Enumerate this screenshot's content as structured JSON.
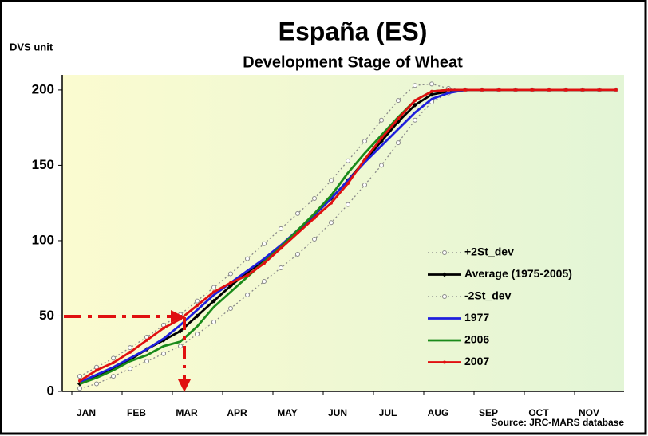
{
  "chart_data": {
    "type": "line",
    "title": "España (ES)",
    "subtitle": "Development Stage of Wheat",
    "y_label": "DVS unit",
    "source": "Source: JRC-MARS database",
    "categories": [
      "JAN",
      null,
      null,
      "FEB",
      null,
      null,
      "MAR",
      null,
      null,
      "APR",
      null,
      null,
      "MAY",
      null,
      null,
      "JUN",
      null,
      null,
      "JUL",
      null,
      null,
      "AUG",
      null,
      null,
      "SEP",
      null,
      null,
      "OCT",
      null,
      null,
      "NOV",
      null,
      null
    ],
    "ylim": [
      0,
      210
    ],
    "yticks": [
      0,
      50,
      100,
      150,
      200
    ],
    "grid": false,
    "series": [
      {
        "name": "+2St_dev",
        "color": "#888888",
        "dash": "dotted",
        "marker": "circle-open",
        "values": [
          10,
          16,
          22,
          29,
          36,
          44,
          51,
          60,
          69,
          78,
          88,
          98,
          108,
          118,
          128,
          140,
          153,
          166,
          180,
          193,
          203,
          204,
          201,
          200,
          200,
          200,
          200,
          200,
          200,
          200,
          200,
          200,
          200
        ]
      },
      {
        "name": "Average (1975-2005)",
        "color": "#000000",
        "dash": "solid",
        "marker": "diamond",
        "values": [
          5,
          10,
          15,
          21,
          28,
          34,
          40,
          50,
          60,
          70,
          79,
          87,
          96,
          106,
          117,
          128,
          140,
          153,
          166,
          179,
          190,
          197,
          199,
          200,
          200,
          200,
          200,
          200,
          200,
          200,
          200,
          200,
          200
        ]
      },
      {
        "name": "-2St_dev",
        "color": "#888888",
        "dash": "dotted",
        "marker": "circle-open",
        "values": [
          2,
          5,
          10,
          15,
          20,
          25,
          30,
          38,
          46,
          55,
          64,
          73,
          82,
          91,
          101,
          112,
          124,
          137,
          150,
          165,
          180,
          192,
          198,
          200,
          200,
          200,
          200,
          200,
          200,
          200,
          200,
          200,
          200
        ]
      },
      {
        "name": "1977",
        "color": "#1f1fdd",
        "dash": "solid",
        "marker": "none",
        "values": [
          6,
          11,
          16,
          22,
          28,
          35,
          44,
          54,
          64,
          72,
          80,
          88,
          97,
          107,
          117,
          128,
          140,
          152,
          163,
          174,
          185,
          194,
          198,
          200,
          200,
          200,
          200,
          200,
          200,
          200,
          200,
          200,
          200
        ]
      },
      {
        "name": "2006",
        "color": "#1a8a1a",
        "dash": "solid",
        "marker": "none",
        "values": [
          5,
          9,
          14,
          20,
          24,
          30,
          33,
          43,
          56,
          66,
          76,
          86,
          96,
          107,
          118,
          130,
          145,
          158,
          170,
          182,
          193,
          199,
          200,
          200,
          200,
          200,
          200,
          200,
          200,
          200,
          200,
          200,
          200
        ]
      },
      {
        "name": "2007",
        "color": "#e01010",
        "dash": "solid",
        "marker": "dot",
        "values": [
          7,
          14,
          19,
          26,
          34,
          42,
          48,
          57,
          66,
          72,
          77,
          85,
          95,
          105,
          115,
          125,
          138,
          154,
          168,
          181,
          193,
          199,
          200,
          200,
          200,
          200,
          200,
          200,
          200,
          200,
          200,
          200,
          200
        ]
      }
    ]
  }
}
